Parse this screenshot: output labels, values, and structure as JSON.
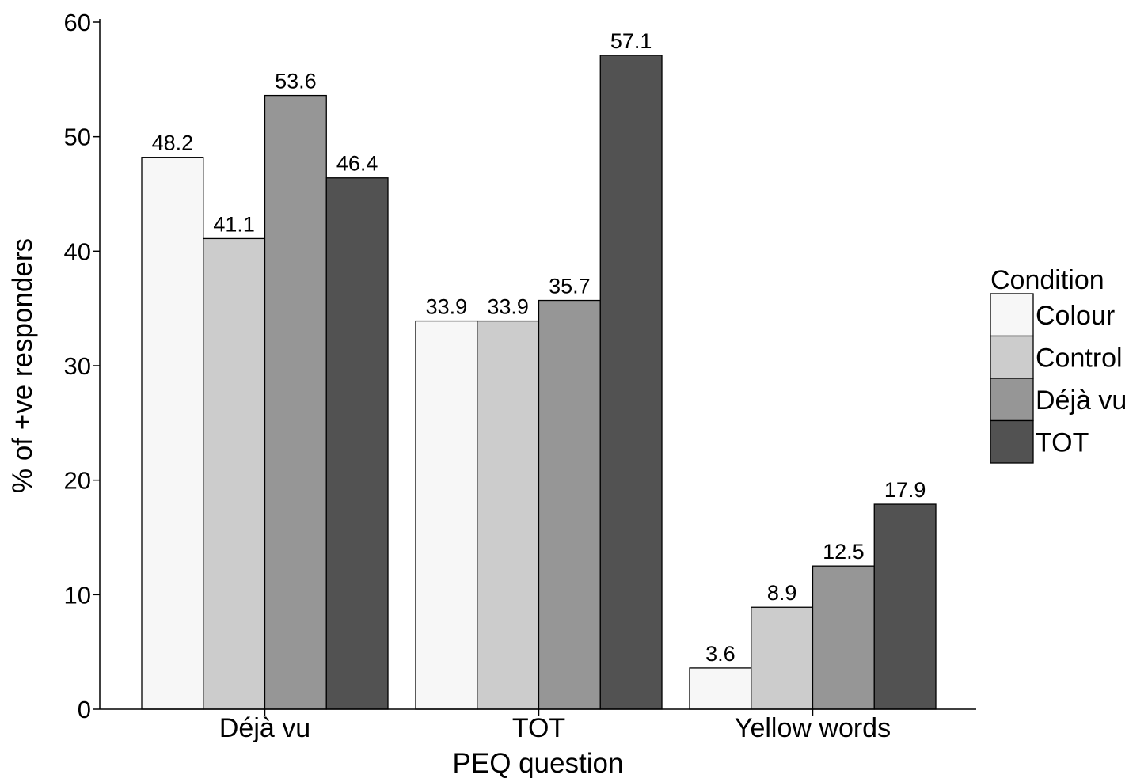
{
  "chart_data": {
    "type": "bar",
    "xlabel": "PEQ question",
    "ylabel": "% of +ve responders",
    "categories": [
      "Déjà vu",
      "TOT",
      "Yellow words"
    ],
    "ylim": [
      0,
      60
    ],
    "yticks": [
      0,
      10,
      20,
      30,
      40,
      50,
      60
    ],
    "grid": false,
    "legend": {
      "title": "Condition",
      "position": "right"
    },
    "series": [
      {
        "name": "Colour",
        "color": "#f7f7f7",
        "values": [
          48.2,
          33.9,
          3.6
        ],
        "labels": [
          "48.2",
          "33.9",
          "3.6"
        ]
      },
      {
        "name": "Control",
        "color": "#cccccc",
        "values": [
          41.1,
          33.9,
          8.9
        ],
        "labels": [
          "41.1",
          "33.9",
          "8.9"
        ]
      },
      {
        "name": "Déjà vu",
        "color": "#969696",
        "values": [
          53.6,
          35.7,
          12.5
        ],
        "labels": [
          "53.6",
          "35.7",
          "12.5"
        ]
      },
      {
        "name": "TOT",
        "color": "#525252",
        "values": [
          46.4,
          57.1,
          17.9
        ],
        "labels": [
          "46.4",
          "57.1",
          "17.9"
        ]
      }
    ]
  }
}
